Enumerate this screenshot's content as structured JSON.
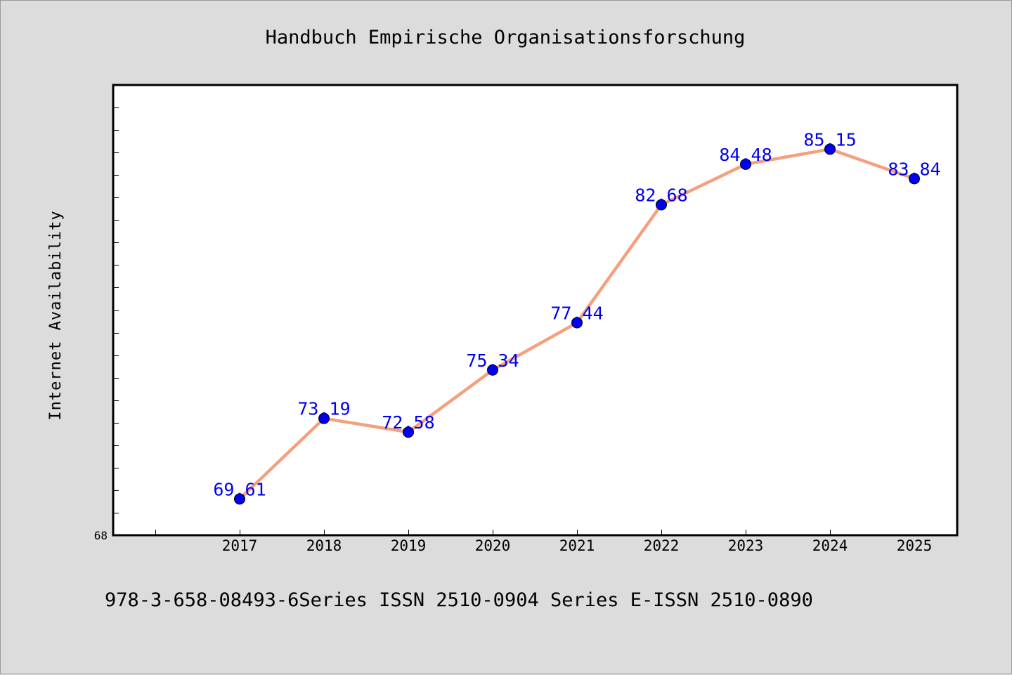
{
  "chart_data": {
    "type": "line",
    "title": "Handbuch Empirische Organisationsforschung",
    "xlabel": "",
    "ylabel": "Internet Availability",
    "categories": [
      "2017",
      "2018",
      "2019",
      "2020",
      "2021",
      "2022",
      "2023",
      "2024",
      "2025"
    ],
    "series": [
      {
        "values": [
          69.61,
          73.19,
          72.58,
          75.34,
          77.44,
          82.68,
          84.48,
          85.15,
          83.84
        ],
        "data_labels": [
          "69.61",
          "73.19",
          "72.58",
          "75.34",
          "77.44",
          "82.68",
          "84.48",
          "85.15",
          "83.84"
        ]
      }
    ],
    "ylim": [
      68,
      88
    ],
    "y_tick_labels_shown": [
      "68"
    ],
    "grid": false,
    "colors": {
      "line": "#f4a07f",
      "marker": "#0000ee",
      "data_label": "#0000ee"
    }
  },
  "footer": "978-3-658-08493-6Series ISSN 2510-0904 Series E-ISSN 2510-0890"
}
